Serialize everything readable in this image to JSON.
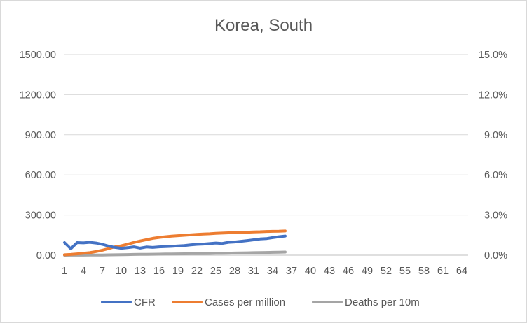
{
  "chart_data": {
    "type": "line",
    "title": "Korea, South",
    "xlabel": "",
    "ylabel": "",
    "x_ticks": [
      "1",
      "4",
      "7",
      "10",
      "13",
      "16",
      "19",
      "22",
      "25",
      "28",
      "31",
      "34",
      "37",
      "40",
      "43",
      "46",
      "49",
      "52",
      "55",
      "58",
      "61",
      "64"
    ],
    "x_range": [
      1,
      65
    ],
    "y_left": {
      "range": [
        0,
        1500
      ],
      "tick_values": [
        0,
        300,
        600,
        900,
        1200,
        1500
      ],
      "tick_labels": [
        "0.00",
        "300.00",
        "600.00",
        "900.00",
        "1200.00",
        "1500.00"
      ]
    },
    "y_right": {
      "range": [
        0,
        0.15
      ],
      "tick_values": [
        0,
        0.03,
        0.06,
        0.09,
        0.12,
        0.15
      ],
      "tick_labels": [
        "0.0%",
        "3.0%",
        "6.0%",
        "9.0%",
        "12.0%",
        "15.0%"
      ]
    },
    "legend_position": "bottom",
    "grid": "horizontal",
    "series": [
      {
        "name": "CFR",
        "axis": "right",
        "color": "#4472C4",
        "x": [
          1,
          2,
          3,
          4,
          5,
          6,
          7,
          8,
          9,
          10,
          11,
          12,
          13,
          14,
          15,
          16,
          17,
          18,
          19,
          20,
          21,
          22,
          23,
          24,
          25,
          26,
          27,
          28,
          29,
          30,
          31,
          32,
          33,
          34,
          35,
          36
        ],
        "values": [
          0.0094,
          0.0048,
          0.0094,
          0.0092,
          0.0096,
          0.0091,
          0.0081,
          0.0068,
          0.0058,
          0.0052,
          0.0056,
          0.0062,
          0.0053,
          0.0061,
          0.0058,
          0.0062,
          0.0064,
          0.0066,
          0.0069,
          0.0072,
          0.0077,
          0.0081,
          0.0083,
          0.0087,
          0.0091,
          0.0088,
          0.0096,
          0.0099,
          0.0104,
          0.0109,
          0.0115,
          0.0121,
          0.0124,
          0.0131,
          0.0138,
          0.0143
        ]
      },
      {
        "name": "Cases per million",
        "axis": "left",
        "color": "#ED7D31",
        "x": [
          1,
          2,
          3,
          4,
          5,
          6,
          7,
          8,
          9,
          10,
          11,
          12,
          13,
          14,
          15,
          16,
          17,
          18,
          19,
          20,
          21,
          22,
          23,
          24,
          25,
          26,
          27,
          28,
          29,
          30,
          31,
          32,
          33,
          34,
          35,
          36
        ],
        "values": [
          3,
          6,
          10,
          14,
          19,
          27,
          37,
          49,
          62,
          70,
          82,
          95,
          106,
          116,
          126,
          133,
          138,
          142,
          146,
          149,
          152,
          155,
          158,
          160,
          163,
          165,
          167,
          169,
          171,
          172,
          174,
          175,
          177,
          178,
          179,
          181
        ]
      },
      {
        "name": "Deaths per 10m",
        "axis": "left",
        "color": "#A5A5A5",
        "x": [
          1,
          2,
          3,
          4,
          5,
          6,
          7,
          8,
          9,
          10,
          11,
          12,
          13,
          14,
          15,
          16,
          17,
          18,
          19,
          20,
          21,
          22,
          23,
          24,
          25,
          26,
          27,
          28,
          29,
          30,
          31,
          32,
          33,
          34,
          35,
          36
        ],
        "values": [
          0.2,
          0.3,
          0.4,
          0.6,
          0.8,
          1.2,
          1.8,
          2.4,
          3.1,
          3.8,
          4.6,
          5.5,
          6.2,
          6.9,
          7.5,
          8.1,
          8.7,
          9.3,
          9.9,
          10.6,
          11.3,
          12.0,
          12.6,
          13.2,
          14.0,
          14.6,
          15.3,
          16.0,
          16.9,
          17.8,
          18.7,
          19.6,
          20.6,
          21.6,
          22.6,
          23.6
        ]
      }
    ]
  }
}
